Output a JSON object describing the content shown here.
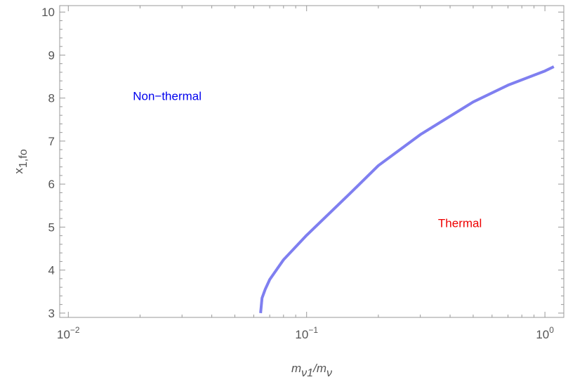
{
  "chart_data": {
    "type": "line",
    "log_x": true,
    "x_label": {
      "base": "m",
      "sub": "ν1",
      "sep": "/",
      "base2": "m",
      "sub2": "ν"
    },
    "y_label": {
      "base": "x",
      "sub": "1,fo"
    },
    "annotations": [
      {
        "text": "Non−thermal",
        "color": "#0000ee",
        "x": 0.026,
        "y": 7.95
      },
      {
        "text": "Thermal",
        "color": "#ee0000",
        "x": 0.44,
        "y": 5.0
      }
    ],
    "xlim": [
      0.0092,
      1.2
    ],
    "ylim": [
      2.9,
      10.15
    ],
    "xticks": [
      {
        "value": 0.01,
        "label": "10",
        "exponent": "−2"
      },
      {
        "value": 0.1,
        "label": "10",
        "exponent": "−1"
      },
      {
        "value": 1,
        "label": "10",
        "exponent": "0"
      }
    ],
    "xticks_minor": [
      0.02,
      0.03,
      0.04,
      0.05,
      0.06,
      0.07,
      0.08,
      0.09,
      0.2,
      0.3,
      0.4,
      0.5,
      0.6,
      0.7,
      0.8,
      0.9
    ],
    "yticks": [
      3,
      4,
      5,
      6,
      7,
      8,
      9,
      10
    ],
    "yticks_minor": [
      3.2,
      3.4,
      3.6,
      3.8,
      4.2,
      4.4,
      4.6,
      4.8,
      5.2,
      5.4,
      5.6,
      5.8,
      6.2,
      6.4,
      6.6,
      6.8,
      7.2,
      7.4,
      7.6,
      7.8,
      8.2,
      8.4,
      8.6,
      8.8,
      9.2,
      9.4,
      9.6,
      9.8
    ],
    "series": [
      {
        "color": "#7f7ff0",
        "x": [
          0.0641,
          0.065,
          0.067,
          0.07,
          0.08,
          0.1,
          0.15,
          0.2,
          0.3,
          0.5,
          0.7,
          1.0,
          1.09
        ],
        "values": [
          3.0,
          3.35,
          3.55,
          3.78,
          4.24,
          4.81,
          5.75,
          6.43,
          7.15,
          7.91,
          8.3,
          8.63,
          8.73
        ]
      }
    ]
  }
}
